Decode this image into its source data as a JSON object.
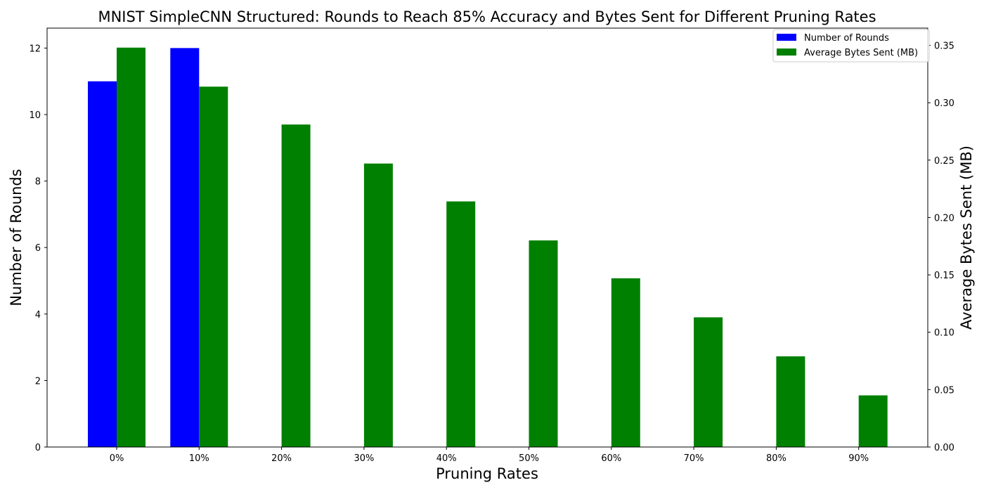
{
  "chart_data": {
    "type": "bar",
    "title": "MNIST SimpleCNN Structured: Rounds to Reach 85% Accuracy and Bytes Sent for Different Pruning Rates",
    "xlabel": "Pruning Rates",
    "categories": [
      "0%",
      "10%",
      "20%",
      "30%",
      "40%",
      "50%",
      "60%",
      "70%",
      "80%",
      "90%"
    ],
    "series": [
      {
        "name": "Number of Rounds",
        "axis": "left",
        "color": "#0000ff",
        "values": [
          11,
          12,
          null,
          null,
          null,
          null,
          null,
          null,
          null,
          null
        ]
      },
      {
        "name": "Average Bytes Sent (MB)",
        "axis": "right",
        "color": "#008000",
        "values": [
          0.348,
          0.314,
          0.281,
          0.247,
          0.214,
          0.18,
          0.147,
          0.113,
          0.079,
          0.045
        ]
      }
    ],
    "y_left": {
      "label": "Number of Rounds",
      "label_color": "#0000ff",
      "ylim": [
        0,
        12.6
      ],
      "ticks": [
        "0",
        "2",
        "4",
        "6",
        "8",
        "10",
        "12"
      ]
    },
    "y_right": {
      "label": "Average Bytes Sent (MB)",
      "label_color": "#008000",
      "ylim": [
        0,
        0.365
      ],
      "ticks": [
        "0.00",
        "0.05",
        "0.10",
        "0.15",
        "0.20",
        "0.25",
        "0.30",
        "0.35"
      ]
    },
    "legend_placement": "top-right",
    "grid": false
  }
}
